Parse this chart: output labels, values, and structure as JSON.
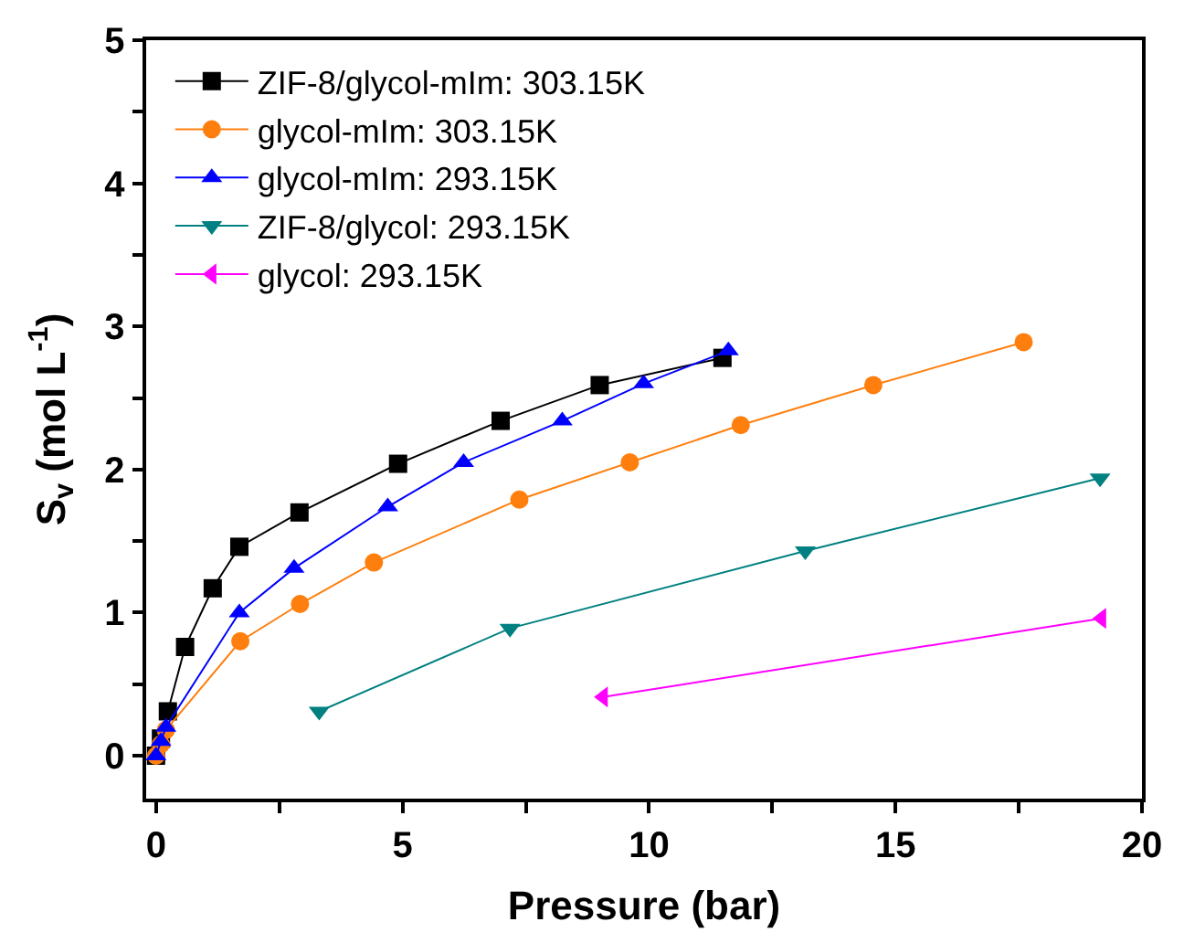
{
  "chart_data": {
    "type": "line",
    "xlabel": "Pressure (bar)",
    "ylabel": "S$_{v}$ (mol L$^{-1}$)",
    "xlim": [
      -0.2,
      20
    ],
    "ylim": [
      -0.3,
      5
    ],
    "xticks": [
      0,
      {
        "value": 2.5,
        "label": null
      },
      5,
      {
        "value": 7.5,
        "label": null
      },
      10,
      {
        "value": 12.5,
        "label": null
      },
      15,
      {
        "value": 17.5,
        "label": null
      },
      20
    ],
    "yticks": [
      0,
      {
        "value": 0.5,
        "label": null
      },
      1,
      {
        "value": 1.5,
        "label": null
      },
      2,
      {
        "value": 2.5,
        "label": null
      },
      3,
      {
        "value": 3.5,
        "label": null
      },
      4,
      {
        "value": 4.5,
        "label": null
      },
      5
    ],
    "legend": "top left",
    "series": [
      {
        "name": "ZIF-8/glycol-mIm: 303.15K",
        "color": "#000000",
        "marker": "square",
        "x": [
          0,
          0.1,
          0.24,
          0.59,
          1.15,
          1.69,
          2.91,
          4.91,
          6.99,
          9.0,
          11.49
        ],
        "values": [
          0,
          0.12,
          0.31,
          0.76,
          1.17,
          1.46,
          1.7,
          2.04,
          2.34,
          2.59,
          2.78
        ]
      },
      {
        "name": "glycol-mIm: 303.15K",
        "color": "#ff7f0e",
        "marker": "circle",
        "x": [
          0,
          0.1,
          0.2,
          1.71,
          2.92,
          4.42,
          7.37,
          9.61,
          11.86,
          14.55,
          17.6
        ],
        "values": [
          0,
          0.08,
          0.18,
          0.8,
          1.06,
          1.35,
          1.79,
          2.05,
          2.31,
          2.59,
          2.89
        ]
      },
      {
        "name": "glycol-mIm: 293.15K",
        "color": "#0000ff",
        "marker": "triangle",
        "x": [
          0,
          0.1,
          0.2,
          1.69,
          2.8,
          4.7,
          6.24,
          8.24,
          9.89,
          11.61
        ],
        "values": [
          0,
          0.1,
          0.2,
          1.0,
          1.31,
          1.74,
          2.05,
          2.34,
          2.6,
          2.83
        ]
      },
      {
        "name": "ZIF-8/glycol: 293.15K",
        "color": "#008080",
        "marker": "triangle-down",
        "x": [
          3.31,
          7.18,
          13.17,
          19.15
        ],
        "values": [
          0.31,
          0.89,
          1.43,
          1.94
        ]
      },
      {
        "name": "glycol: 293.15K",
        "color": "#ff00ff",
        "marker": "triangle-left",
        "x": [
          9.07,
          19.18
        ],
        "values": [
          0.41,
          0.96
        ]
      }
    ]
  }
}
